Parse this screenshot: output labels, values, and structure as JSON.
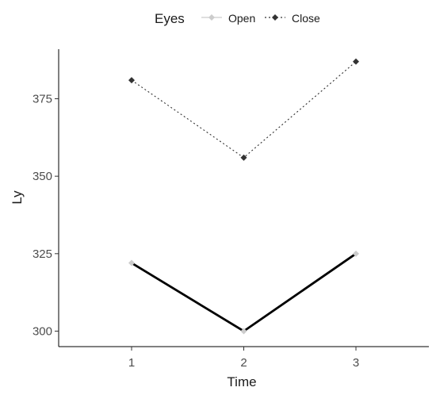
{
  "chart_data": {
    "type": "line",
    "title": "",
    "xlabel": "Time",
    "ylabel": "Ly",
    "x": [
      1,
      2,
      3
    ],
    "xticks": [
      "1",
      "2",
      "3"
    ],
    "xlim": [
      0.35,
      3.65
    ],
    "yticks": [
      300,
      325,
      350,
      375
    ],
    "ylim": [
      295,
      391
    ],
    "grid": false,
    "legend": {
      "title": "Eyes",
      "placement": "top"
    },
    "series": [
      {
        "name": "Open",
        "values": [
          322,
          300,
          325
        ],
        "marker_color": "#cccccc",
        "line_color": "#000000",
        "line_style": "solid"
      },
      {
        "name": "Close",
        "values": [
          381,
          356,
          387
        ],
        "marker_color": "#333333",
        "line_color": "#333333",
        "line_style": "dotted"
      }
    ]
  }
}
